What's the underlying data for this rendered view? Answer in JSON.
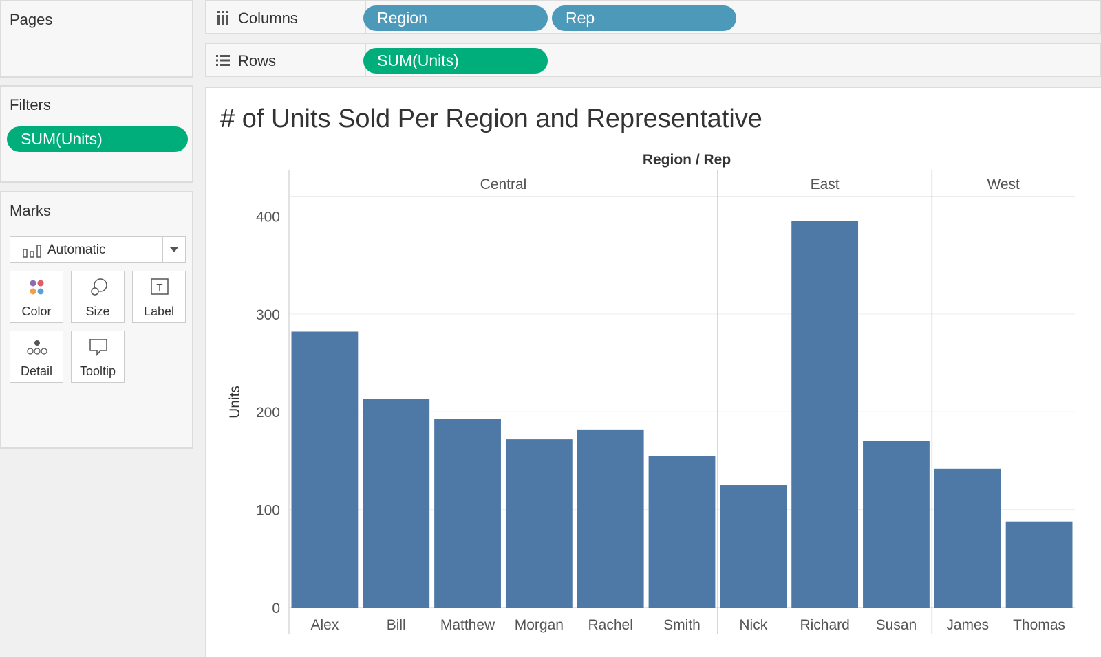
{
  "pages": {
    "title": "Pages"
  },
  "filters": {
    "title": "Filters",
    "pill": "SUM(Units)"
  },
  "marks": {
    "title": "Marks",
    "type": "Automatic",
    "buttons": {
      "color": "Color",
      "size": "Size",
      "label": "Label",
      "detail": "Detail",
      "tooltip": "Tooltip"
    }
  },
  "shelves": {
    "columns": {
      "label": "Columns",
      "pills": [
        "Region",
        "Rep"
      ]
    },
    "rows": {
      "label": "Rows",
      "pills": [
        "SUM(Units)"
      ]
    }
  },
  "colors": {
    "bar": "#4e79a7",
    "measure_pill": "#00ae7b",
    "dimension_pill": "#4d99b9"
  },
  "chart_data": {
    "type": "bar",
    "title": "# of Units Sold Per Region and Representative",
    "header": "Region / Rep",
    "ylabel": "Units",
    "ylim": [
      0,
      420
    ],
    "yticks": [
      0,
      100,
      200,
      300,
      400
    ],
    "grid": true,
    "regions": [
      {
        "name": "Central",
        "reps": [
          "Alex",
          "Bill",
          "Matthew",
          "Morgan",
          "Rachel",
          "Smith"
        ],
        "values": [
          282,
          213,
          193,
          172,
          182,
          155
        ]
      },
      {
        "name": "East",
        "reps": [
          "Nick",
          "Richard",
          "Susan"
        ],
        "values": [
          125,
          395,
          170
        ]
      },
      {
        "name": "West",
        "reps": [
          "James",
          "Thomas"
        ],
        "values": [
          142,
          88
        ]
      }
    ]
  }
}
